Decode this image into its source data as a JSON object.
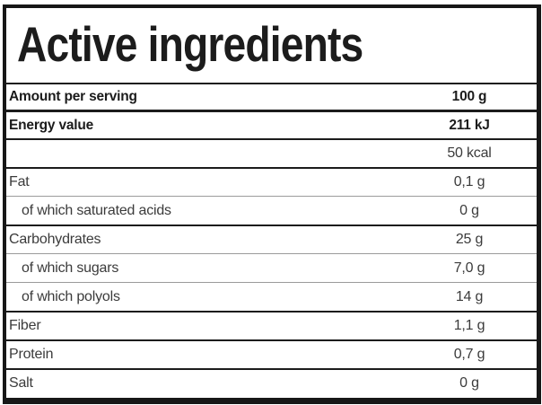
{
  "colors": {
    "outer_border": "#171717",
    "divider_dark": "#1c1c1c",
    "divider_light": "#9b9b9b",
    "text_bold": "#1b1b1b",
    "text_regular": "#3b3b3b",
    "background": "#ffffff"
  },
  "panel": {
    "title": "Active ingredients",
    "header_row": {
      "label": "Amount per serving",
      "value": "100 g"
    },
    "rows": [
      {
        "label": "Energy value",
        "value": "211 kJ"
      },
      {
        "label": "",
        "value": "50 kcal"
      },
      {
        "label": "Fat",
        "value": "0,1 g"
      },
      {
        "label": "of which saturated acids",
        "value": "0 g"
      },
      {
        "label": "Carbohydrates",
        "value": "25 g"
      },
      {
        "label": "of which sugars",
        "value": "7,0 g"
      },
      {
        "label": "of which polyols",
        "value": "14 g"
      },
      {
        "label": "Fiber",
        "value": "1,1 g"
      },
      {
        "label": "Protein",
        "value": "0,7 g"
      },
      {
        "label": "Salt",
        "value": "0 g"
      }
    ]
  }
}
